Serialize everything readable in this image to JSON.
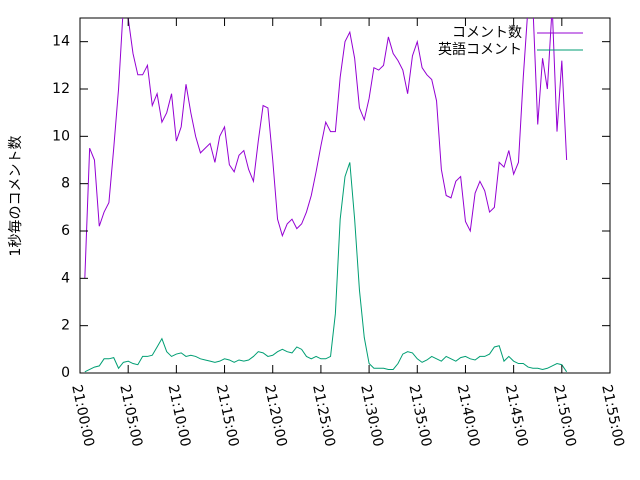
{
  "chart_data": {
    "type": "line",
    "y_label": "1秒毎のコメント数",
    "x": [
      "21:00:30",
      "21:01:00",
      "21:01:30",
      "21:02:00",
      "21:02:30",
      "21:03:00",
      "21:03:30",
      "21:04:00",
      "21:04:30",
      "21:05:00",
      "21:05:30",
      "21:06:00",
      "21:06:30",
      "21:07:00",
      "21:07:30",
      "21:08:00",
      "21:08:30",
      "21:09:00",
      "21:09:30",
      "21:10:00",
      "21:10:30",
      "21:11:00",
      "21:11:30",
      "21:12:00",
      "21:12:30",
      "21:13:00",
      "21:13:30",
      "21:14:00",
      "21:14:30",
      "21:15:00",
      "21:15:30",
      "21:16:00",
      "21:16:30",
      "21:17:00",
      "21:17:30",
      "21:18:00",
      "21:18:30",
      "21:19:00",
      "21:19:30",
      "21:20:00",
      "21:20:30",
      "21:21:00",
      "21:21:30",
      "21:22:00",
      "21:22:30",
      "21:23:00",
      "21:23:30",
      "21:24:00",
      "21:24:30",
      "21:25:00",
      "21:25:30",
      "21:26:00",
      "21:26:30",
      "21:27:00",
      "21:27:30",
      "21:28:00",
      "21:28:30",
      "21:29:00",
      "21:29:30",
      "21:30:00",
      "21:30:30",
      "21:31:00",
      "21:31:30",
      "21:32:00",
      "21:32:30",
      "21:33:00",
      "21:33:30",
      "21:34:00",
      "21:34:30",
      "21:35:00",
      "21:35:30",
      "21:36:00",
      "21:36:30",
      "21:37:00",
      "21:37:30",
      "21:38:00",
      "21:38:30",
      "21:39:00",
      "21:39:30",
      "21:40:00",
      "21:40:30",
      "21:41:00",
      "21:41:30",
      "21:42:00",
      "21:42:30",
      "21:43:00",
      "21:43:30",
      "21:44:00",
      "21:44:30",
      "21:45:00",
      "21:45:30",
      "21:46:00",
      "21:46:30",
      "21:47:00",
      "21:47:30",
      "21:48:00",
      "21:48:30",
      "21:49:00",
      "21:49:30",
      "21:50:00",
      "21:50:30"
    ],
    "series": [
      {
        "name": "コメント数",
        "color": "#9400d3",
        "values": [
          4.0,
          9.5,
          9.0,
          6.2,
          6.8,
          7.2,
          9.5,
          12.0,
          15.5,
          15.0,
          13.5,
          12.6,
          12.6,
          13.0,
          11.3,
          11.8,
          10.6,
          11.0,
          11.8,
          9.8,
          10.4,
          12.2,
          11.0,
          10.0,
          9.3,
          9.5,
          9.7,
          8.9,
          10.0,
          10.4,
          8.8,
          8.5,
          9.2,
          9.4,
          8.6,
          8.1,
          9.8,
          11.3,
          11.2,
          9.0,
          6.5,
          5.8,
          6.3,
          6.5,
          6.1,
          6.3,
          6.8,
          7.5,
          8.5,
          9.6,
          10.6,
          10.2,
          10.2,
          12.5,
          14.0,
          14.4,
          13.3,
          11.2,
          10.7,
          11.6,
          12.9,
          12.8,
          13.0,
          14.2,
          13.5,
          13.2,
          12.8,
          11.8,
          13.4,
          14.0,
          12.9,
          12.6,
          12.4,
          11.5,
          8.6,
          7.5,
          7.4,
          8.1,
          8.3,
          6.4,
          6.0,
          7.6,
          8.1,
          7.7,
          6.8,
          7.0,
          8.9,
          8.7,
          9.4,
          8.4,
          8.9,
          12.5,
          15.5,
          15.5,
          10.5,
          13.3,
          12.0,
          15.5,
          10.2,
          13.2,
          9.0
        ]
      },
      {
        "name": "英語コメント",
        "color": "#009e73",
        "values": [
          0.05,
          0.15,
          0.25,
          0.3,
          0.6,
          0.6,
          0.65,
          0.2,
          0.45,
          0.5,
          0.4,
          0.35,
          0.7,
          0.7,
          0.75,
          1.1,
          1.45,
          0.9,
          0.7,
          0.8,
          0.85,
          0.7,
          0.75,
          0.7,
          0.6,
          0.55,
          0.5,
          0.45,
          0.5,
          0.6,
          0.55,
          0.45,
          0.55,
          0.5,
          0.55,
          0.7,
          0.9,
          0.85,
          0.7,
          0.75,
          0.9,
          1.0,
          0.9,
          0.85,
          1.1,
          1.0,
          0.7,
          0.6,
          0.7,
          0.6,
          0.6,
          0.7,
          2.5,
          6.5,
          8.3,
          8.9,
          6.5,
          3.5,
          1.5,
          0.4,
          0.2,
          0.2,
          0.2,
          0.15,
          0.15,
          0.4,
          0.8,
          0.9,
          0.85,
          0.6,
          0.45,
          0.55,
          0.7,
          0.6,
          0.5,
          0.7,
          0.6,
          0.5,
          0.65,
          0.7,
          0.6,
          0.55,
          0.7,
          0.7,
          0.8,
          1.1,
          1.15,
          0.5,
          0.7,
          0.5,
          0.4,
          0.4,
          0.25,
          0.2,
          0.2,
          0.15,
          0.2,
          0.3,
          0.4,
          0.35,
          0.05
        ]
      }
    ],
    "xlim": [
      "21:00:00",
      "21:55:00"
    ],
    "xticks": [
      "21:00:00",
      "21:05:00",
      "21:10:00",
      "21:15:00",
      "21:20:00",
      "21:25:00",
      "21:30:00",
      "21:35:00",
      "21:40:00",
      "21:45:00",
      "21:50:00",
      "21:55:00"
    ],
    "ylim": [
      0,
      15
    ],
    "yticks": [
      0,
      2,
      4,
      6,
      8,
      10,
      12,
      14
    ],
    "legend": "top-right"
  }
}
